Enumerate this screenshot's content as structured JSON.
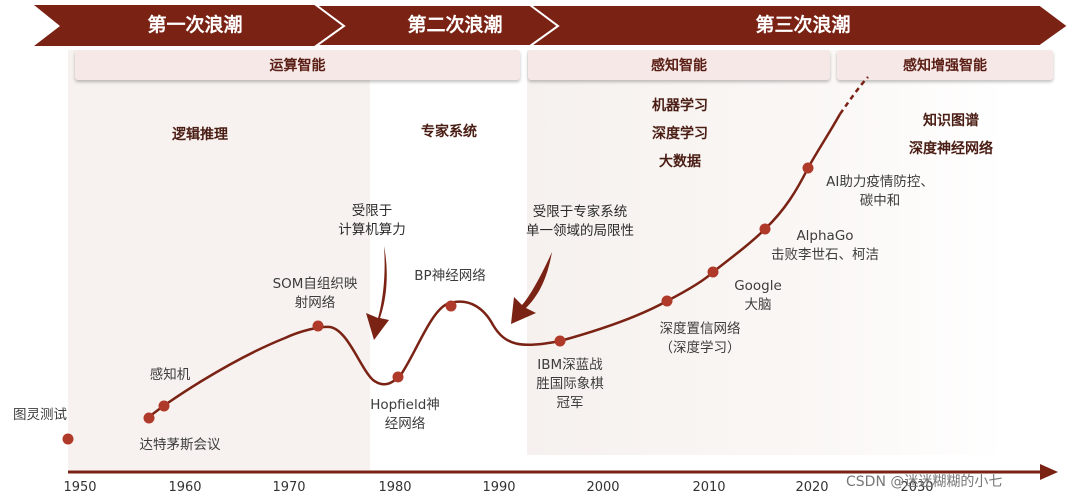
{
  "waves": [
    "第一次浪潮",
    "第二次浪潮",
    "第三次浪潮"
  ],
  "phases": [
    "运算智能",
    "感知智能",
    "感知增强智能"
  ],
  "topics": {
    "first": "逻辑推理",
    "second": "专家系统",
    "third": [
      "机器学习",
      "深度学习",
      "大数据"
    ],
    "fourth": [
      "知识图谱",
      "深度神经网络"
    ]
  },
  "notes": {
    "compute_limit": [
      "受限于",
      "计算机算力"
    ],
    "expert_limit": [
      "受限于专家系统",
      "单一领域的局限性"
    ]
  },
  "milestones": [
    {
      "lines": [
        "图灵测试"
      ]
    },
    {
      "lines": [
        "达特茅斯会议"
      ]
    },
    {
      "lines": [
        "感知机"
      ]
    },
    {
      "lines": [
        "SOM自组织映",
        "射网络"
      ]
    },
    {
      "lines": [
        "Hopfield神",
        "经网络"
      ]
    },
    {
      "lines": [
        "BP神经网络"
      ]
    },
    {
      "lines": [
        "IBM深蓝战",
        "胜国际象棋",
        "冠军"
      ]
    },
    {
      "lines": [
        "深度置信网络",
        "（深度学习）"
      ]
    },
    {
      "lines": [
        "Google",
        "大脑"
      ]
    },
    {
      "lines": [
        "AlphaGo",
        "击败李世石、柯洁"
      ]
    },
    {
      "lines": [
        "AI助力疫情防控、",
        "碳中和"
      ]
    }
  ],
  "years": [
    "1950",
    "1960",
    "1970",
    "1980",
    "1990",
    "2000",
    "2010",
    "2020",
    "2030"
  ],
  "watermark": "CSDN @迷迷糊糊的小七",
  "colors": {
    "primary": "#7a2214",
    "panel": "#f7f3f1",
    "phase_bar": "#f5e8e6"
  }
}
